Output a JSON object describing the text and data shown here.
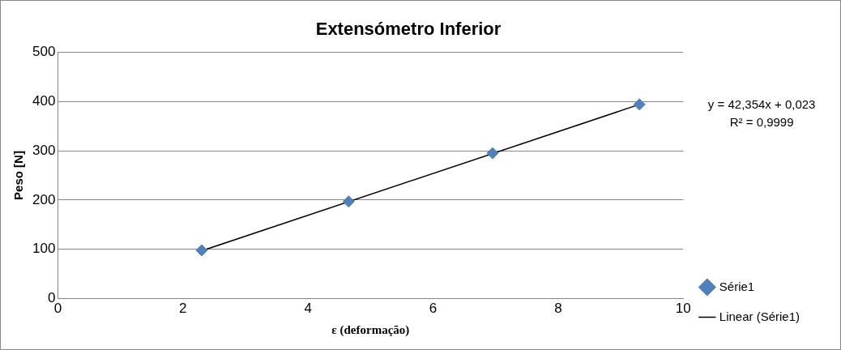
{
  "chart_data": {
    "type": "scatter",
    "title": "Extensómetro Inferior",
    "xlabel": "ε (deformação)",
    "ylabel": "Peso [N]",
    "x": [
      2.3,
      4.65,
      6.95,
      9.3
    ],
    "series": [
      {
        "name": "Série1",
        "color": "#4f81bd",
        "marker": "diamond",
        "values": [
          98,
          197,
          295,
          394
        ]
      },
      {
        "name": "Linear (Série1)",
        "type": "line",
        "color": "#000000",
        "marker": "none",
        "x": [
          2.3,
          9.3
        ],
        "values": [
          97,
          394
        ]
      }
    ],
    "xlim": [
      0,
      10
    ],
    "xticks": [
      0,
      2,
      4,
      6,
      8,
      10
    ],
    "ylim": [
      0,
      500
    ],
    "yticks": [
      0,
      100,
      200,
      300,
      400,
      500
    ],
    "grid": "y",
    "legend": "right",
    "annotations": [
      "y = 42,354x + 0,023",
      "R² = 0,9999"
    ]
  }
}
